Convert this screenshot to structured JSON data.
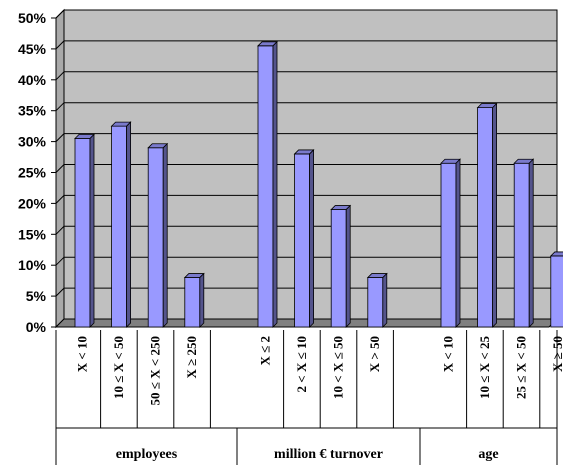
{
  "chart_data": {
    "type": "bar",
    "ylim": [
      0,
      50
    ],
    "y_ticks": [
      "0%",
      "5%",
      "10%",
      "15%",
      "20%",
      "25%",
      "30%",
      "35%",
      "40%",
      "45%",
      "50%"
    ],
    "grid": true,
    "legend": "none",
    "colors": {
      "bar": "#9999ff",
      "plot_bg": "#c0c0c0",
      "floor": "#808080",
      "grid": "#000000"
    },
    "groups": [
      {
        "label": "employees",
        "categories": [
          "X < 10",
          "10 ≤ X < 50",
          "50 ≤ X < 250",
          "X ≥ 250"
        ],
        "values": [
          30.5,
          32.5,
          29,
          8
        ]
      },
      {
        "label": "million € turnover",
        "categories": [
          "X ≤ 2",
          "2 < X ≤ 10",
          "10 < X ≤ 50",
          "X > 50"
        ],
        "values": [
          45.5,
          28,
          19,
          8
        ]
      },
      {
        "label": "age",
        "categories": [
          "X < 10",
          "10 ≤ X < 25",
          "25 ≤ X < 50",
          "X ≥ 50"
        ],
        "values": [
          26.5,
          35.5,
          26.5,
          11.5
        ]
      }
    ]
  }
}
